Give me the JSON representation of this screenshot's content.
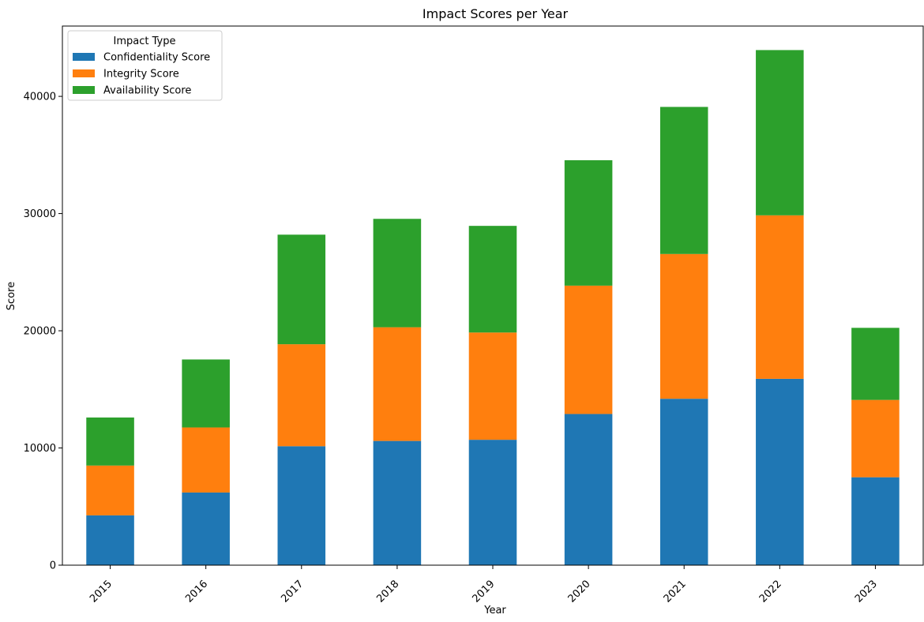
{
  "chart_data": {
    "type": "bar",
    "stacked": true,
    "title": "Impact Scores per Year",
    "xlabel": "Year",
    "ylabel": "Score",
    "categories": [
      "2015",
      "2016",
      "2017",
      "2018",
      "2019",
      "2020",
      "2021",
      "2022",
      "2023"
    ],
    "ylim": [
      0,
      46000
    ],
    "yticks": [
      0,
      10000,
      20000,
      30000,
      40000
    ],
    "ytick_labels": [
      "0",
      "10000",
      "20000",
      "30000",
      "40000"
    ],
    "grid": false,
    "legend": {
      "title": "Impact Type",
      "placement": "top-left"
    },
    "series": [
      {
        "name": "Confidentiality Score",
        "color": "#1f77b4",
        "values": [
          4250,
          6200,
          10150,
          10600,
          10700,
          12900,
          14200,
          15900,
          7500
        ]
      },
      {
        "name": "Integrity Score",
        "color": "#ff7f0e",
        "values": [
          4250,
          5550,
          8700,
          9700,
          9150,
          10950,
          12350,
          13950,
          6600
        ]
      },
      {
        "name": "Availability Score",
        "color": "#2ca02c",
        "values": [
          4100,
          5800,
          9350,
          9250,
          9100,
          10700,
          12550,
          14100,
          6150
        ]
      }
    ]
  }
}
